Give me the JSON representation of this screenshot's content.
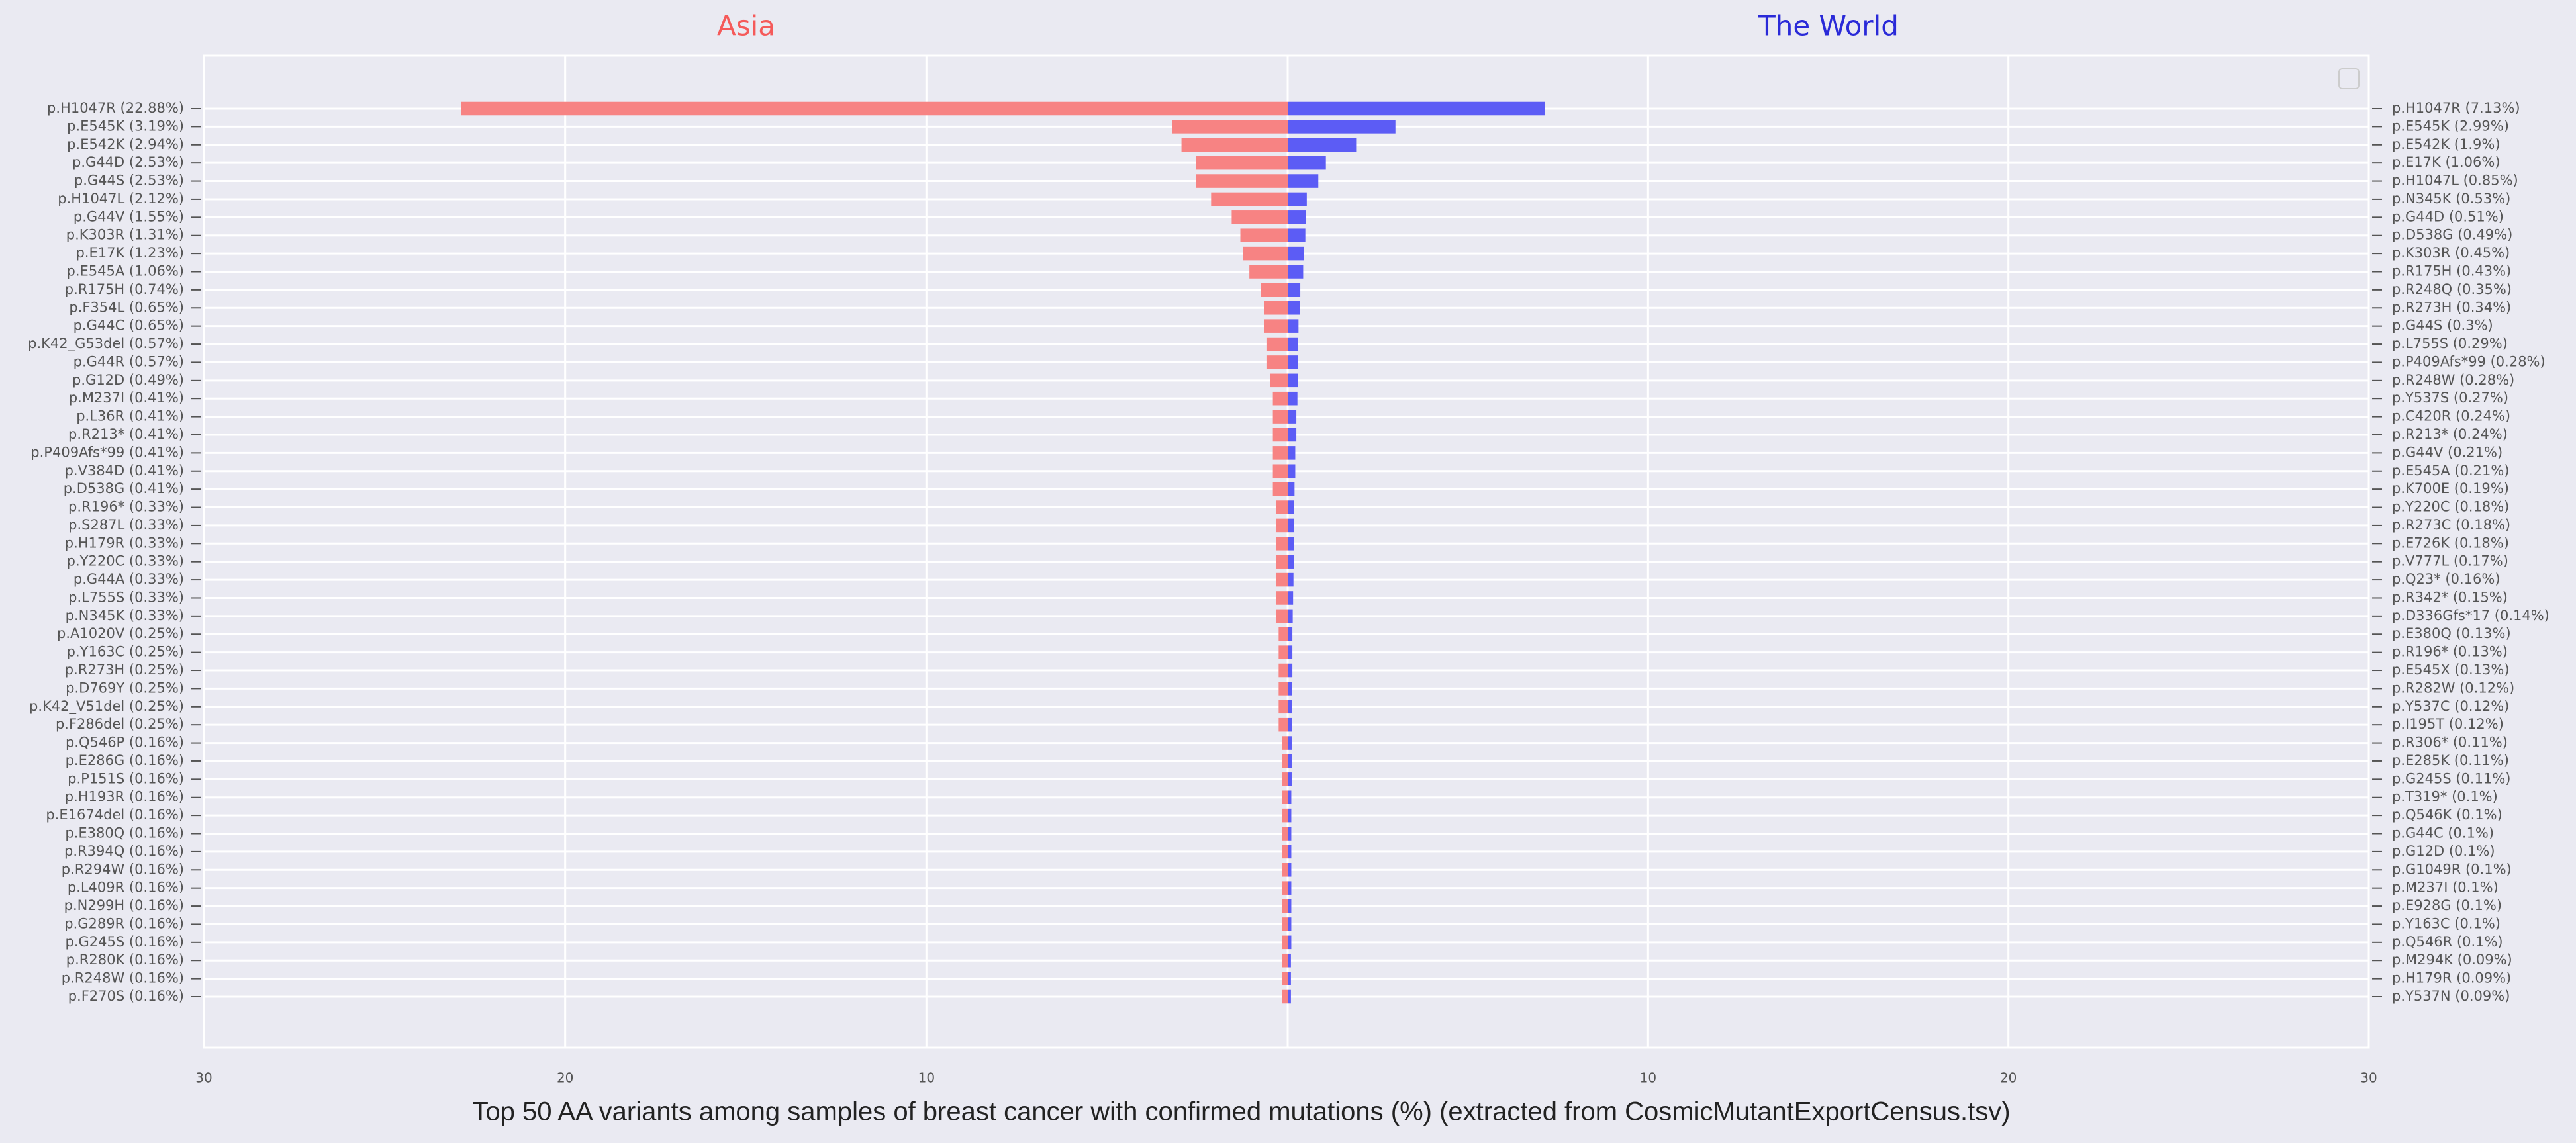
{
  "caption": "Top 50 AA variants among samples of breast cancer with confirmed mutations (%) (extracted from CosmicMutantExportCensus.tsv)",
  "chart_data": [
    {
      "type": "bar",
      "orientation": "horizontal",
      "title": "Asia",
      "title_color": "#f55a5a",
      "color": "#f78383",
      "label_side": "left",
      "grid": true,
      "xlim": [
        30,
        0
      ],
      "xticks": [
        30,
        20,
        10
      ],
      "categories": [
        "p.H1047R (22.88%)",
        "p.E545K (3.19%)",
        "p.E542K (2.94%)",
        "p.G44D (2.53%)",
        "p.G44S (2.53%)",
        "p.H1047L (2.12%)",
        "p.G44V (1.55%)",
        "p.K303R (1.31%)",
        "p.E17K (1.23%)",
        "p.E545A (1.06%)",
        "p.R175H (0.74%)",
        "p.F354L (0.65%)",
        "p.G44C (0.65%)",
        "p.K42_G53del (0.57%)",
        "p.G44R (0.57%)",
        "p.G12D (0.49%)",
        "p.M237I (0.41%)",
        "p.L36R (0.41%)",
        "p.R213* (0.41%)",
        "p.P409Afs*99 (0.41%)",
        "p.V384D (0.41%)",
        "p.D538G (0.41%)",
        "p.R196* (0.33%)",
        "p.S287L (0.33%)",
        "p.H179R (0.33%)",
        "p.Y220C (0.33%)",
        "p.G44A (0.33%)",
        "p.L755S (0.33%)",
        "p.N345K (0.33%)",
        "p.A1020V (0.25%)",
        "p.Y163C (0.25%)",
        "p.R273H (0.25%)",
        "p.D769Y (0.25%)",
        "p.K42_V51del (0.25%)",
        "p.F286del (0.25%)",
        "p.Q546P (0.16%)",
        "p.E286G (0.16%)",
        "p.P151S (0.16%)",
        "p.H193R (0.16%)",
        "p.E1674del (0.16%)",
        "p.E380Q (0.16%)",
        "p.R394Q (0.16%)",
        "p.R294W (0.16%)",
        "p.L409R (0.16%)",
        "p.N299H (0.16%)",
        "p.G289R (0.16%)",
        "p.G245S (0.16%)",
        "p.R280K (0.16%)",
        "p.R248W (0.16%)",
        "p.F270S (0.16%)"
      ],
      "values": [
        22.88,
        3.19,
        2.94,
        2.53,
        2.53,
        2.12,
        1.55,
        1.31,
        1.23,
        1.06,
        0.74,
        0.65,
        0.65,
        0.57,
        0.57,
        0.49,
        0.41,
        0.41,
        0.41,
        0.41,
        0.41,
        0.41,
        0.33,
        0.33,
        0.33,
        0.33,
        0.33,
        0.33,
        0.33,
        0.25,
        0.25,
        0.25,
        0.25,
        0.25,
        0.25,
        0.16,
        0.16,
        0.16,
        0.16,
        0.16,
        0.16,
        0.16,
        0.16,
        0.16,
        0.16,
        0.16,
        0.16,
        0.16,
        0.16,
        0.16
      ]
    },
    {
      "type": "bar",
      "orientation": "horizontal",
      "title": "The World",
      "title_color": "#2a2ad8",
      "color": "#5c5cf5",
      "label_side": "right",
      "grid": true,
      "xlim": [
        0,
        30
      ],
      "xticks": [
        10,
        20,
        30
      ],
      "categories": [
        "p.H1047R (7.13%)",
        "p.E545K (2.99%)",
        "p.E542K (1.9%)",
        "p.E17K (1.06%)",
        "p.H1047L (0.85%)",
        "p.N345K (0.53%)",
        "p.G44D (0.51%)",
        "p.D538G (0.49%)",
        "p.K303R (0.45%)",
        "p.R175H (0.43%)",
        "p.R248Q (0.35%)",
        "p.R273H (0.34%)",
        "p.G44S (0.3%)",
        "p.L755S (0.29%)",
        "p.P409Afs*99 (0.28%)",
        "p.R248W (0.28%)",
        "p.Y537S (0.27%)",
        "p.C420R (0.24%)",
        "p.R213* (0.24%)",
        "p.G44V (0.21%)",
        "p.E545A (0.21%)",
        "p.K700E (0.19%)",
        "p.Y220C (0.18%)",
        "p.R273C (0.18%)",
        "p.E726K (0.18%)",
        "p.V777L (0.17%)",
        "p.Q23* (0.16%)",
        "p.R342* (0.15%)",
        "p.D336Gfs*17 (0.14%)",
        "p.E380Q (0.13%)",
        "p.R196* (0.13%)",
        "p.E545X (0.13%)",
        "p.R282W (0.12%)",
        "p.Y537C (0.12%)",
        "p.I195T (0.12%)",
        "p.R306* (0.11%)",
        "p.E285K (0.11%)",
        "p.G245S (0.11%)",
        "p.T319* (0.1%)",
        "p.Q546K (0.1%)",
        "p.G44C (0.1%)",
        "p.G12D (0.1%)",
        "p.G1049R (0.1%)",
        "p.M237I (0.1%)",
        "p.E928G (0.1%)",
        "p.Y163C (0.1%)",
        "p.Q546R (0.1%)",
        "p.M294K (0.09%)",
        "p.H179R (0.09%)",
        "p.Y537N (0.09%)"
      ],
      "values": [
        7.13,
        2.99,
        1.9,
        1.06,
        0.85,
        0.53,
        0.51,
        0.49,
        0.45,
        0.43,
        0.35,
        0.34,
        0.3,
        0.29,
        0.28,
        0.28,
        0.27,
        0.24,
        0.24,
        0.21,
        0.21,
        0.19,
        0.18,
        0.18,
        0.18,
        0.17,
        0.16,
        0.15,
        0.14,
        0.13,
        0.13,
        0.13,
        0.12,
        0.12,
        0.12,
        0.11,
        0.11,
        0.11,
        0.1,
        0.1,
        0.1,
        0.1,
        0.1,
        0.1,
        0.1,
        0.1,
        0.1,
        0.09,
        0.09,
        0.09
      ]
    }
  ]
}
